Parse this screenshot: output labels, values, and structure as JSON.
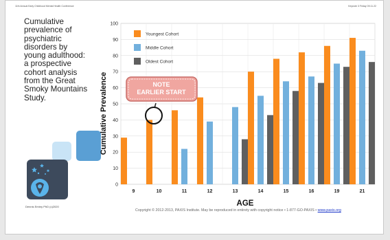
{
  "header": {
    "left": "11th Annual Early Childhood Mental Health Conference",
    "right": "Keynote 3 Friday 09.11.22"
  },
  "side_title": "Cumulative prevalence of psychiatric disorders by young adulthood: a prospective cohort analysis from the Great Smoky Mountains Study.",
  "author": "Dennis Embry PhD (c)2020",
  "note": {
    "line1": "NOTE",
    "line2": "EARLIER START"
  },
  "copyright": {
    "text": "Copyright © 2012-2013, PAXIS Institute. May be reproduced in entirety with copyright notice • 1-877-GO-PAXIS •",
    "link": "www.paxis.org"
  },
  "colors": {
    "youngest": "#fa8c1e",
    "middle": "#72b0dd",
    "oldest": "#5f5f5f",
    "note_fill": "#f0a6a0",
    "note_border": "#c96f6a",
    "logo_bg": "#3d4a5c",
    "logo_accent": "#5ab4ea"
  },
  "icons": [
    "star-icon",
    "face-icon"
  ],
  "chart_data": {
    "type": "bar",
    "xlabel": "AGE",
    "ylabel": "Cumulative Prevalence",
    "ylim": [
      0,
      100
    ],
    "yticks": [
      0,
      10,
      20,
      30,
      40,
      50,
      60,
      70,
      80,
      90,
      100
    ],
    "categories": [
      "9",
      "10",
      "11",
      "12",
      "13",
      "14",
      "15",
      "16",
      "19",
      "21"
    ],
    "grid": true,
    "legend_position": "top-left",
    "series": [
      {
        "name": "Youngest Cohort",
        "values": [
          29,
          40,
          46,
          54,
          null,
          70,
          78,
          82,
          86,
          91
        ]
      },
      {
        "name": "Middle Cohort",
        "values": [
          null,
          null,
          22,
          39,
          48,
          55,
          64,
          67,
          75,
          83
        ]
      },
      {
        "name": "Oldest Cohort",
        "values": [
          null,
          null,
          null,
          null,
          28,
          43,
          58,
          63,
          73,
          76
        ]
      }
    ]
  }
}
